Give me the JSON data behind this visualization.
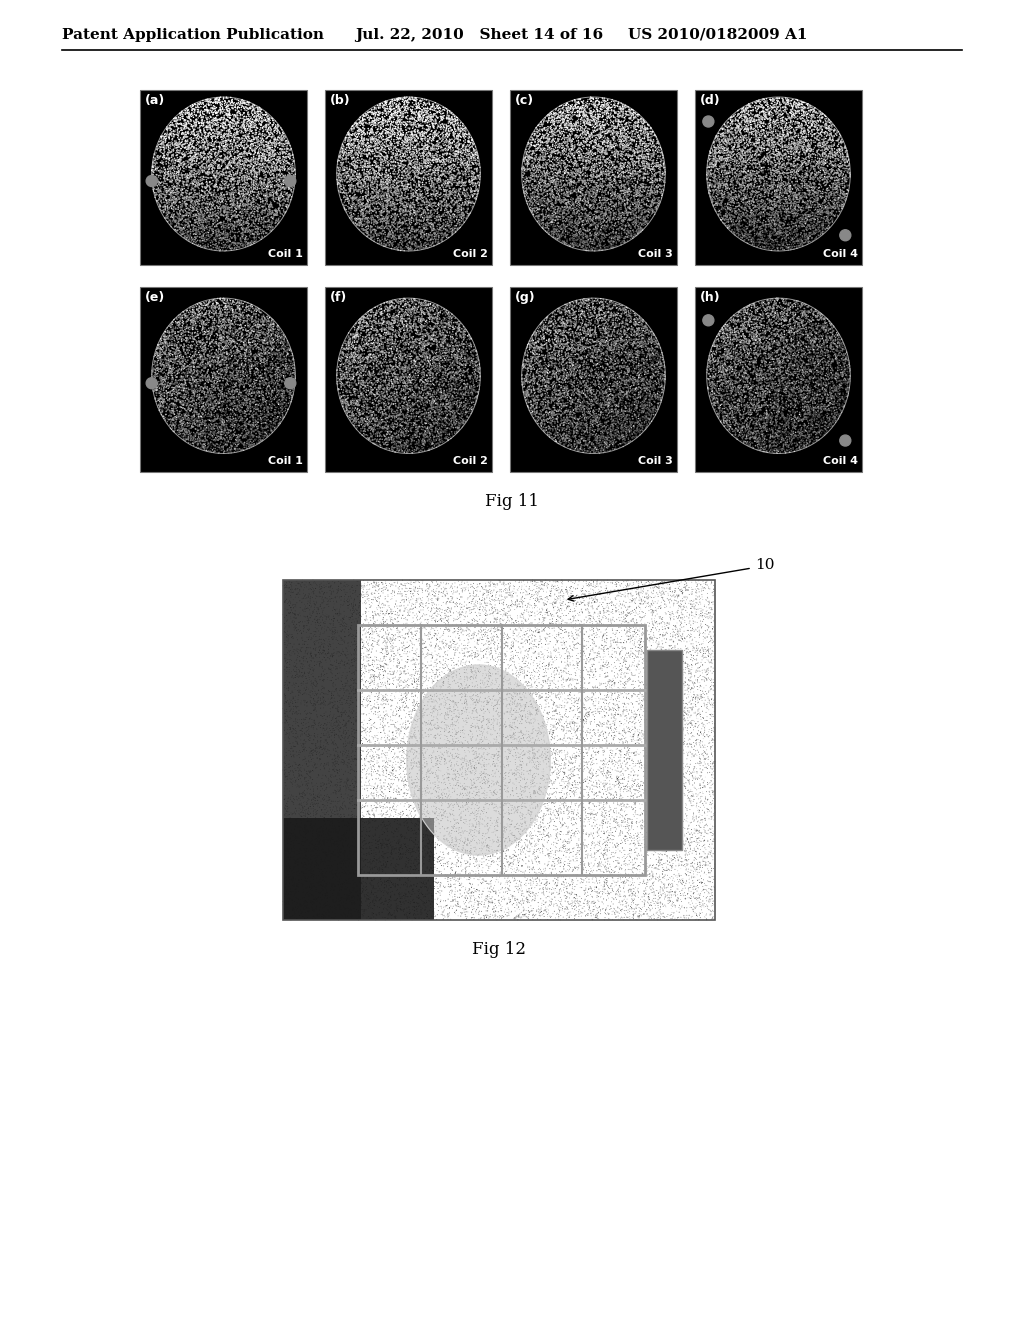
{
  "header_left": "Patent Application Publication",
  "header_mid": "Jul. 22, 2010   Sheet 14 of 16",
  "header_right": "US 2010/0182009 A1",
  "background_color": "#ffffff",
  "header_font_size": 11,
  "caption_font_size": 12,
  "fig11_caption": "Fig 11",
  "fig12_caption": "Fig 12",
  "fig12_label": "10"
}
